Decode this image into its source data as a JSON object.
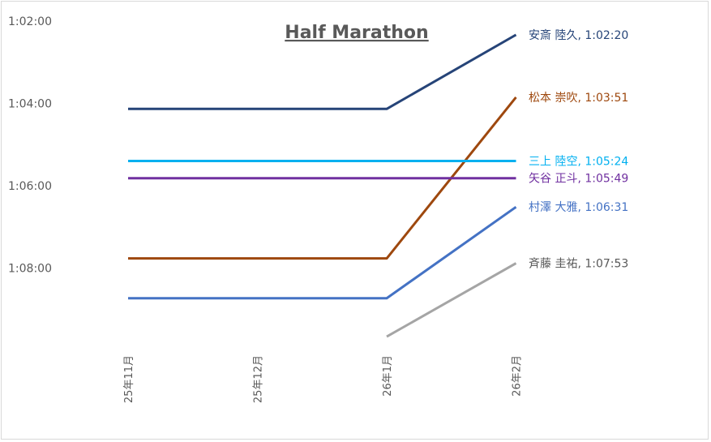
{
  "chart_data": {
    "type": "line",
    "title": "Half Marathon",
    "xlabel": "",
    "ylabel": "",
    "categories": [
      "25年11月",
      "25年12月",
      "26年1月",
      "26年2月"
    ],
    "y_axis_reversed": true,
    "y_ticks": [
      "1:02:00",
      "1:04:00",
      "1:06:00",
      "1:08:00"
    ],
    "ylim_seconds": [
      3720,
      4200
    ],
    "grid": false,
    "legend": "none",
    "series": [
      {
        "name": "安斎 陸久",
        "label": "安斎 陸久, 1:02:20",
        "color": "#264478",
        "values": [
          "1:04:08",
          "1:04:08",
          "1:04:08",
          "1:02:20"
        ]
      },
      {
        "name": "松本 崇吹",
        "label": "松本 崇吹, 1:03:51",
        "color": "#9E480E",
        "values": [
          "1:07:46",
          "1:07:46",
          "1:07:46",
          "1:03:51"
        ]
      },
      {
        "name": "三上 陸空",
        "label": "三上 陸空, 1:05:24",
        "color": "#00B0F0",
        "values": [
          "1:05:24",
          "1:05:24",
          "1:05:24",
          "1:05:24"
        ]
      },
      {
        "name": "矢谷 正斗",
        "label": "矢谷 正斗, 1:05:49",
        "color": "#7030A0",
        "values": [
          "1:05:49",
          "1:05:49",
          "1:05:49",
          "1:05:49"
        ]
      },
      {
        "name": "村澤 大雅",
        "label": "村澤 大雅, 1:06:31",
        "color": "#4472C4",
        "values": [
          "1:08:44",
          "1:08:44",
          "1:08:44",
          "1:06:31"
        ]
      },
      {
        "name": "斉藤 圭祐",
        "label": "斉藤 圭祐, 1:07:53",
        "color": "#A5A5A5",
        "values": [
          null,
          null,
          "1:09:40",
          "1:07:53"
        ]
      }
    ]
  }
}
